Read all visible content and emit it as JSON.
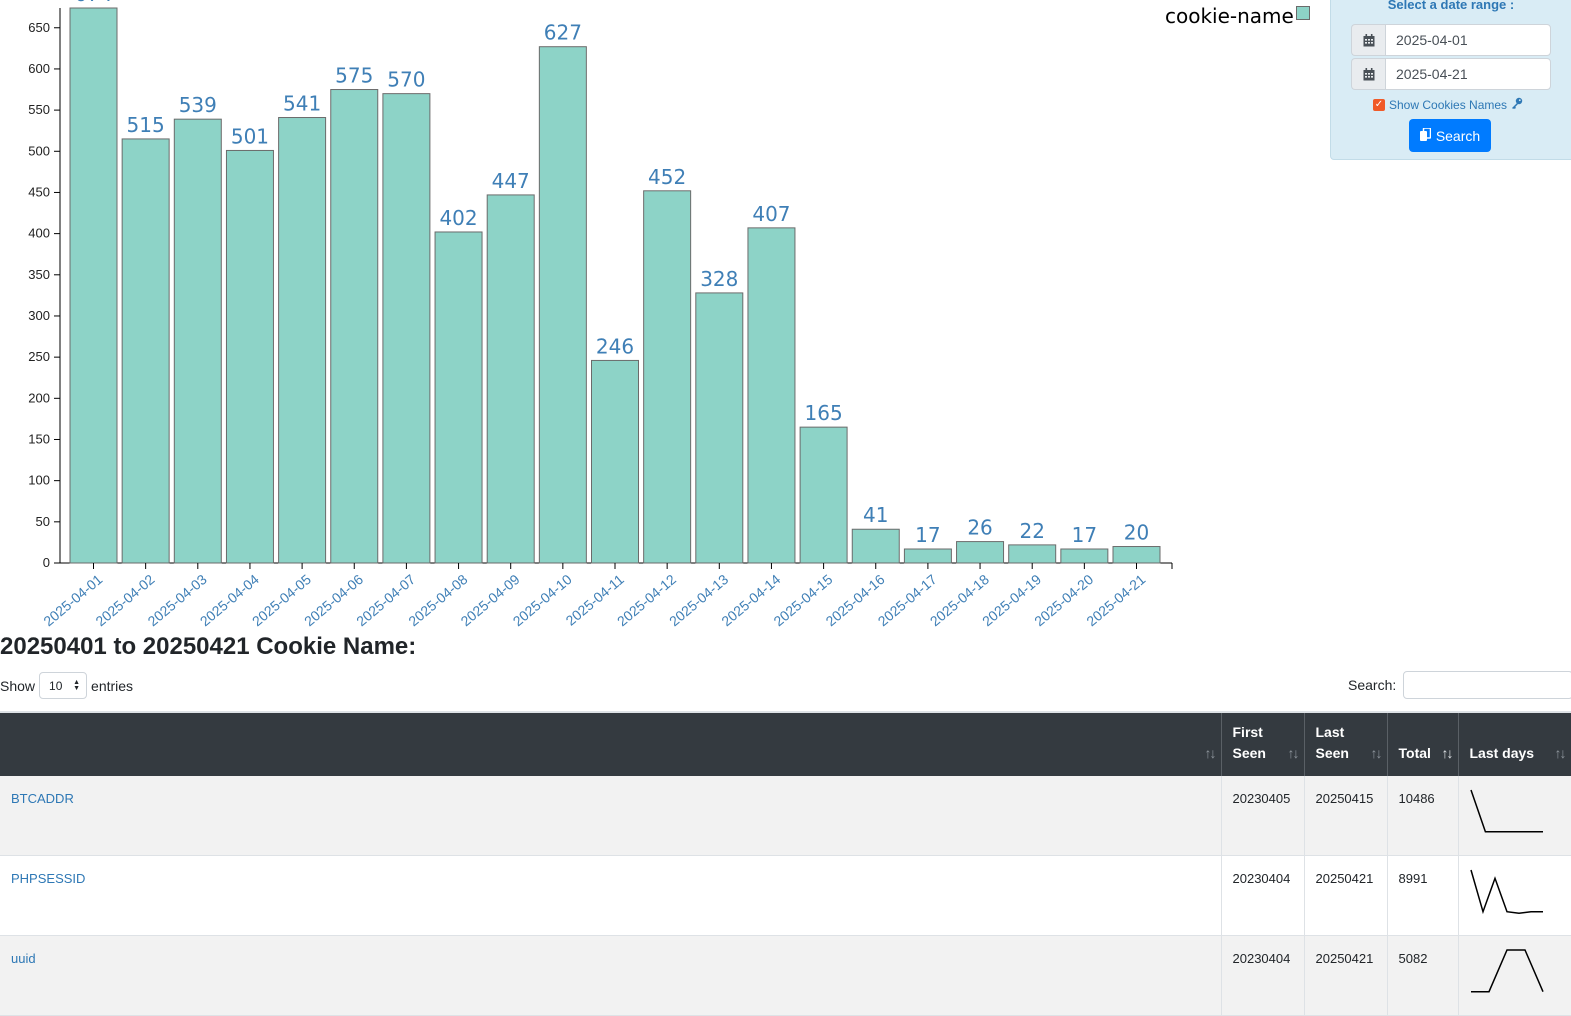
{
  "chart_data": {
    "type": "bar",
    "categories": [
      "2025-04-01",
      "2025-04-02",
      "2025-04-03",
      "2025-04-04",
      "2025-04-05",
      "2025-04-06",
      "2025-04-07",
      "2025-04-08",
      "2025-04-09",
      "2025-04-10",
      "2025-04-11",
      "2025-04-12",
      "2025-04-13",
      "2025-04-14",
      "2025-04-15",
      "2025-04-16",
      "2025-04-17",
      "2025-04-18",
      "2025-04-19",
      "2025-04-20",
      "2025-04-21"
    ],
    "series": [
      {
        "name": "cookie-name",
        "values": [
          674,
          515,
          539,
          501,
          541,
          575,
          570,
          402,
          447,
          627,
          246,
          452,
          328,
          407,
          165,
          41,
          17,
          26,
          22,
          17,
          20
        ]
      }
    ],
    "y_ticks": [
      0,
      50,
      100,
      150,
      200,
      250,
      300,
      350,
      400,
      450,
      500,
      550,
      600,
      650
    ],
    "ylim": [
      0,
      674
    ],
    "bar_color": "#8dd3c7",
    "legend": {
      "label": "cookie-name",
      "position": "top-right"
    },
    "grid": false
  },
  "date_panel": {
    "title": "Select a date range :",
    "start_date": "2025-04-01",
    "end_date": "2025-04-21",
    "show_names_label": "Show Cookies Names",
    "show_names_checked": true,
    "search_label": "Search",
    "calendar_icon": "calendar-icon",
    "key_icon": "key-icon",
    "copy_icon": "copy-icon"
  },
  "section_title": "20250401 to 20250421 Cookie Name:",
  "length_control": {
    "show": "Show",
    "value": "10",
    "entries": "entries"
  },
  "search_control": {
    "label": "Search:",
    "value": ""
  },
  "table": {
    "headers": [
      "",
      "First Seen",
      "Last Seen",
      "Total",
      "Last days"
    ],
    "rows": [
      {
        "name": "BTCADDR",
        "first_seen": "20230405",
        "last_seen": "20250415",
        "total": "10486",
        "sparkline": [
          6,
          1,
          1,
          1,
          1,
          1
        ]
      },
      {
        "name": "PHPSESSID",
        "first_seen": "20230404",
        "last_seen": "20250421",
        "total": "8991",
        "sparkline": [
          6,
          1,
          5,
          1,
          0.8,
          1,
          1
        ]
      },
      {
        "name": "uuid",
        "first_seen": "20230404",
        "last_seen": "20250421",
        "total": "5082",
        "sparkline": [
          1,
          1,
          6,
          6,
          1
        ]
      }
    ]
  },
  "colors": {
    "accent": "#007bff",
    "header_bg": "#343a40",
    "link": "#2e78b5",
    "panel_bg": "#d9ecf5"
  }
}
